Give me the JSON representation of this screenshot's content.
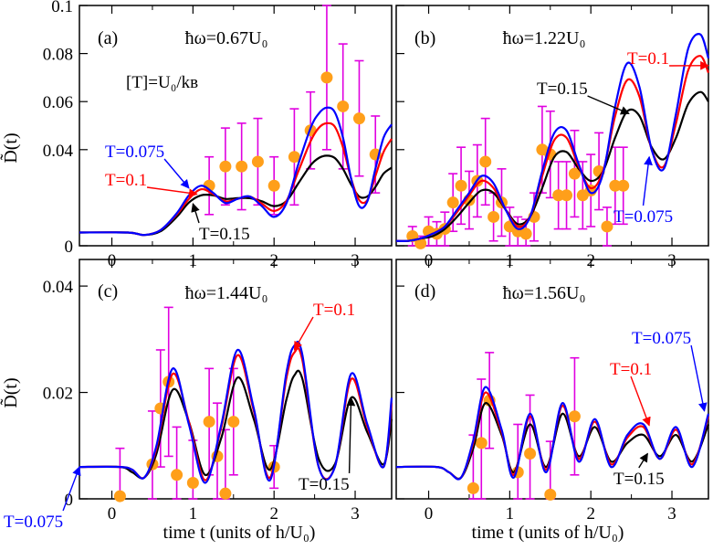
{
  "figure": {
    "xlabel": "time t (units of h/U₀)",
    "ylabel": "D̃(t)",
    "temperature_units": "[T]=U₀/kʙ"
  },
  "colors": {
    "T=0.075": "#0000ff",
    "T=0.1": "#ff0000",
    "T=0.15": "#000000",
    "exp": "#ff9f1a",
    "err": "#e000e0"
  },
  "chart_data": [
    {
      "type": "line",
      "panel": "(a)",
      "title": "ħω=0.67U₀",
      "xlim": [
        -0.4,
        3.45
      ],
      "ylim": [
        0,
        0.1
      ],
      "xticks": [
        0,
        1,
        2,
        3
      ],
      "yticks": [
        0,
        0.04,
        0.06,
        0.08,
        0.1
      ],
      "ytick_labels": [
        "0",
        "0.04",
        "0.06",
        "0.08",
        "0.1"
      ],
      "annotations": [
        "T=0.075",
        "T=0.1",
        "T=0.15",
        "[T]=U₀/kʙ"
      ],
      "series": [
        {
          "name": "T=0.075",
          "color": "#0000ff",
          "x": [
            -0.4,
            0.2,
            0.4,
            0.6,
            0.8,
            0.95,
            1.1,
            1.25,
            1.4,
            1.55,
            1.7,
            1.85,
            2.0,
            2.15,
            2.3,
            2.45,
            2.55,
            2.65,
            2.75,
            2.85,
            2.95,
            3.05,
            3.15,
            3.25,
            3.35,
            3.45
          ],
          "y": [
            0.0055,
            0.0055,
            0.0045,
            0.0065,
            0.0135,
            0.021,
            0.025,
            0.022,
            0.0178,
            0.0195,
            0.0205,
            0.0165,
            0.012,
            0.0175,
            0.034,
            0.049,
            0.055,
            0.0575,
            0.0555,
            0.045,
            0.028,
            0.0165,
            0.0185,
            0.032,
            0.045,
            0.0505
          ]
        },
        {
          "name": "T=0.1",
          "color": "#ff0000",
          "x": [
            -0.4,
            0.2,
            0.4,
            0.6,
            0.8,
            0.95,
            1.1,
            1.25,
            1.4,
            1.55,
            1.7,
            1.85,
            2.0,
            2.15,
            2.3,
            2.45,
            2.55,
            2.65,
            2.75,
            2.85,
            2.95,
            3.05,
            3.15,
            3.25,
            3.35,
            3.45
          ],
          "y": [
            0.0055,
            0.0055,
            0.0045,
            0.0065,
            0.013,
            0.0195,
            0.0235,
            0.0215,
            0.0185,
            0.0195,
            0.0205,
            0.0175,
            0.0145,
            0.0185,
            0.031,
            0.0435,
            0.049,
            0.051,
            0.0495,
            0.041,
            0.028,
            0.019,
            0.019,
            0.029,
            0.039,
            0.0445
          ]
        },
        {
          "name": "T=0.15",
          "color": "#000000",
          "x": [
            -0.4,
            0.2,
            0.4,
            0.6,
            0.8,
            0.95,
            1.1,
            1.25,
            1.4,
            1.55,
            1.7,
            1.85,
            2.0,
            2.15,
            2.3,
            2.45,
            2.55,
            2.65,
            2.75,
            2.85,
            2.95,
            3.05,
            3.15,
            3.25,
            3.35,
            3.45
          ],
          "y": [
            0.0055,
            0.0055,
            0.0045,
            0.006,
            0.012,
            0.018,
            0.021,
            0.021,
            0.0195,
            0.0198,
            0.0198,
            0.0185,
            0.0165,
            0.0185,
            0.026,
            0.0335,
            0.0365,
            0.0375,
            0.0365,
            0.032,
            0.0255,
            0.0205,
            0.0205,
            0.0245,
            0.03,
            0.0325
          ]
        }
      ],
      "experiment": {
        "x": [
          1.2,
          1.4,
          1.6,
          1.8,
          2.0,
          2.25,
          2.45,
          2.65,
          2.85,
          3.05,
          3.25
        ],
        "y": [
          0.025,
          0.033,
          0.033,
          0.035,
          0.025,
          0.037,
          0.048,
          0.07,
          0.058,
          0.053,
          0.038
        ],
        "err": [
          0.012,
          0.016,
          0.018,
          0.018,
          0.012,
          0.02,
          0.016,
          0.03,
          0.026,
          0.024,
          0.016
        ]
      }
    },
    {
      "type": "line",
      "panel": "(b)",
      "title": "ħω=1.22U₀",
      "xlim": [
        -0.4,
        3.45
      ],
      "ylim": [
        0,
        0.1
      ],
      "xticks": [
        0,
        1,
        2,
        3
      ],
      "yticks": [],
      "ytick_labels": [],
      "annotations": [
        "T=0.1",
        "T=0.15",
        "T=0.075"
      ],
      "series": [
        {
          "name": "T=0.075",
          "color": "#0000ff",
          "x": [
            -0.4,
            -0.25,
            -0.1,
            0.05,
            0.2,
            0.35,
            0.5,
            0.65,
            0.8,
            0.95,
            1.1,
            1.25,
            1.4,
            1.55,
            1.7,
            1.85,
            2.0,
            2.15,
            2.3,
            2.45,
            2.6,
            2.75,
            2.9,
            3.05,
            3.2,
            3.35,
            3.45
          ],
          "y": [
            0.002,
            0.002,
            0.003,
            0.005,
            0.008,
            0.015,
            0.022,
            0.029,
            0.026,
            0.015,
            0.007,
            0.012,
            0.031,
            0.047,
            0.048,
            0.034,
            0.022,
            0.03,
            0.058,
            0.076,
            0.066,
            0.04,
            0.032,
            0.055,
            0.082,
            0.088,
            0.078
          ]
        },
        {
          "name": "T=0.1",
          "color": "#ff0000",
          "x": [
            -0.4,
            -0.25,
            -0.1,
            0.05,
            0.2,
            0.35,
            0.5,
            0.65,
            0.8,
            0.95,
            1.1,
            1.25,
            1.4,
            1.55,
            1.7,
            1.85,
            2.0,
            2.15,
            2.3,
            2.45,
            2.6,
            2.75,
            2.9,
            3.05,
            3.2,
            3.35,
            3.45
          ],
          "y": [
            0.002,
            0.002,
            0.003,
            0.005,
            0.008,
            0.014,
            0.021,
            0.027,
            0.024,
            0.015,
            0.008,
            0.012,
            0.029,
            0.044,
            0.045,
            0.033,
            0.024,
            0.031,
            0.054,
            0.069,
            0.062,
            0.04,
            0.033,
            0.051,
            0.073,
            0.079,
            0.072
          ]
        },
        {
          "name": "T=0.15",
          "color": "#000000",
          "x": [
            -0.4,
            -0.25,
            -0.1,
            0.05,
            0.2,
            0.35,
            0.5,
            0.65,
            0.8,
            0.95,
            1.1,
            1.25,
            1.4,
            1.55,
            1.7,
            1.85,
            2.0,
            2.15,
            2.3,
            2.45,
            2.6,
            2.75,
            2.9,
            3.05,
            3.2,
            3.35,
            3.45
          ],
          "y": [
            0.002,
            0.002,
            0.003,
            0.004,
            0.007,
            0.012,
            0.018,
            0.023,
            0.022,
            0.015,
            0.009,
            0.012,
            0.024,
            0.037,
            0.039,
            0.032,
            0.027,
            0.031,
            0.045,
            0.056,
            0.054,
            0.041,
            0.036,
            0.045,
            0.059,
            0.064,
            0.06
          ]
        }
      ],
      "experiment": {
        "x": [
          -0.2,
          -0.1,
          0.0,
          0.1,
          0.2,
          0.3,
          0.4,
          0.5,
          0.6,
          0.7,
          0.8,
          0.9,
          1.0,
          1.1,
          1.2,
          1.3,
          1.4,
          1.5,
          1.6,
          1.7,
          1.8,
          1.9,
          2.0,
          2.1,
          2.2,
          2.3,
          2.4
        ],
        "y": [
          0.004,
          0.001,
          0.006,
          0.005,
          0.007,
          0.018,
          0.025,
          0.019,
          0.027,
          0.035,
          0.012,
          0.018,
          0.008,
          0.006,
          0.005,
          0.012,
          0.04,
          0.038,
          0.021,
          0.021,
          0.03,
          0.021,
          0.023,
          0.031,
          0.008,
          0.025,
          0.025
        ],
        "err": [
          0.004,
          0.003,
          0.006,
          0.005,
          0.007,
          0.012,
          0.016,
          0.012,
          0.015,
          0.018,
          0.01,
          0.014,
          0.008,
          0.006,
          0.006,
          0.01,
          0.018,
          0.018,
          0.014,
          0.014,
          0.018,
          0.014,
          0.015,
          0.016,
          0.008,
          0.016,
          0.016
        ]
      }
    },
    {
      "type": "line",
      "panel": "(c)",
      "title": "ħω=1.44U₀",
      "xlim": [
        -0.4,
        3.45
      ],
      "ylim": [
        0,
        0.045
      ],
      "xticks": [
        0,
        1,
        2,
        3
      ],
      "yticks": [
        0,
        0.02,
        0.04
      ],
      "ytick_labels": [
        "0",
        "0.02",
        "0.04"
      ],
      "annotations": [
        "T=0.1",
        "T=0.15",
        "T=0.075"
      ],
      "series": [
        {
          "name": "T=0.075",
          "color": "#0000ff",
          "x": [
            -0.4,
            0.1,
            0.25,
            0.4,
            0.55,
            0.75,
            0.95,
            1.15,
            1.35,
            1.55,
            1.75,
            1.95,
            2.15,
            2.25,
            2.35,
            2.55,
            2.75,
            2.95,
            3.15,
            3.35,
            3.45
          ],
          "y": [
            0.006,
            0.006,
            0.0055,
            0.004,
            0.01,
            0.0245,
            0.014,
            0.003,
            0.014,
            0.028,
            0.017,
            0.0035,
            0.0235,
            0.0288,
            0.027,
            0.006,
            0.006,
            0.0235,
            0.014,
            0.006,
            0.019
          ]
        },
        {
          "name": "T=0.1",
          "color": "#ff0000",
          "x": [
            -0.4,
            0.1,
            0.25,
            0.4,
            0.55,
            0.75,
            0.95,
            1.15,
            1.35,
            1.55,
            1.75,
            1.95,
            2.15,
            2.25,
            2.35,
            2.55,
            2.75,
            2.95,
            3.15,
            3.35,
            3.45
          ],
          "y": [
            0.006,
            0.006,
            0.0055,
            0.004,
            0.0095,
            0.0235,
            0.0145,
            0.0035,
            0.0135,
            0.027,
            0.0165,
            0.004,
            0.0225,
            0.0275,
            0.026,
            0.006,
            0.006,
            0.0225,
            0.0135,
            0.006,
            0.018
          ]
        },
        {
          "name": "T=0.15",
          "color": "#000000",
          "x": [
            -0.4,
            0.1,
            0.25,
            0.4,
            0.55,
            0.75,
            0.95,
            1.15,
            1.35,
            1.55,
            1.75,
            1.95,
            2.15,
            2.25,
            2.35,
            2.55,
            2.75,
            2.95,
            3.15,
            3.35,
            3.45
          ],
          "y": [
            0.006,
            0.006,
            0.005,
            0.004,
            0.0085,
            0.0205,
            0.0145,
            0.0045,
            0.0115,
            0.0228,
            0.015,
            0.0055,
            0.0185,
            0.0232,
            0.0225,
            0.0075,
            0.0065,
            0.019,
            0.0125,
            0.0065,
            0.015
          ]
        }
      ],
      "experiment": {
        "x": [
          0.1,
          0.5,
          0.6,
          0.7,
          0.8,
          1.0,
          1.2,
          1.3,
          1.4,
          1.5,
          2.0
        ],
        "y": [
          0.0005,
          0.0065,
          0.017,
          0.022,
          0.0045,
          0.003,
          0.0145,
          0.008,
          0.001,
          0.0145,
          0.006
        ],
        "err": [
          0.009,
          0.01,
          0.011,
          0.014,
          0.009,
          0.008,
          0.01,
          0.01,
          0.012,
          0.01,
          0.004
        ]
      }
    },
    {
      "type": "line",
      "panel": "(d)",
      "title": "ħω=1.56U₀",
      "xlim": [
        -0.4,
        3.45
      ],
      "ylim": [
        0,
        0.045
      ],
      "xticks": [
        0,
        1,
        2,
        3
      ],
      "yticks": [],
      "ytick_labels": [],
      "annotations": [
        "T=0.075",
        "T=0.1",
        "T=0.15"
      ],
      "series": [
        {
          "name": "T=0.075",
          "color": "#0000ff",
          "x": [
            -0.4,
            0.1,
            0.25,
            0.4,
            0.55,
            0.7,
            0.9,
            1.05,
            1.25,
            1.45,
            1.65,
            1.85,
            2.05,
            2.25,
            2.45,
            2.65,
            2.85,
            3.05,
            3.25,
            3.45
          ],
          "y": [
            0.006,
            0.006,
            0.005,
            0.004,
            0.011,
            0.021,
            0.013,
            0.004,
            0.016,
            0.005,
            0.018,
            0.007,
            0.015,
            0.006,
            0.012,
            0.014,
            0.0075,
            0.0135,
            0.006,
            0.016
          ]
        },
        {
          "name": "T=0.1",
          "color": "#ff0000",
          "x": [
            -0.4,
            0.1,
            0.25,
            0.4,
            0.55,
            0.7,
            0.9,
            1.05,
            1.25,
            1.45,
            1.65,
            1.85,
            2.05,
            2.25,
            2.45,
            2.65,
            2.85,
            3.05,
            3.25,
            3.45
          ],
          "y": [
            0.006,
            0.006,
            0.005,
            0.004,
            0.0105,
            0.02,
            0.0125,
            0.0045,
            0.0155,
            0.0055,
            0.0175,
            0.0075,
            0.0145,
            0.0065,
            0.0115,
            0.0135,
            0.0075,
            0.013,
            0.0065,
            0.0155
          ]
        },
        {
          "name": "T=0.15",
          "color": "#000000",
          "x": [
            -0.4,
            0.1,
            0.25,
            0.4,
            0.55,
            0.7,
            0.9,
            1.05,
            1.25,
            1.45,
            1.65,
            1.85,
            2.05,
            2.25,
            2.45,
            2.65,
            2.85,
            3.05,
            3.25,
            3.45
          ],
          "y": [
            0.006,
            0.006,
            0.005,
            0.004,
            0.0095,
            0.018,
            0.012,
            0.005,
            0.014,
            0.006,
            0.016,
            0.008,
            0.0135,
            0.007,
            0.0105,
            0.012,
            0.008,
            0.012,
            0.007,
            0.014
          ]
        }
      ],
      "experiment": {
        "x": [
          0.55,
          0.65,
          0.75,
          1.1,
          1.25,
          1.5,
          1.8
        ],
        "y": [
          0.002,
          0.0105,
          0.0185,
          0.005,
          0.0085,
          0.0008,
          0.0155
        ],
        "err": [
          0.01,
          0.012,
          0.009,
          0.009,
          0.011,
          0.01,
          0.011
        ]
      }
    }
  ]
}
